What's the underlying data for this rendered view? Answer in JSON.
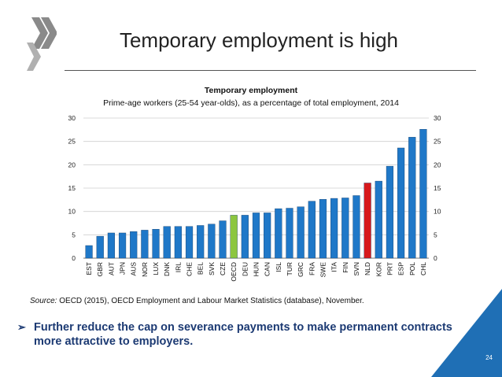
{
  "slide": {
    "title": "Temporary employment is high",
    "page_number": "24"
  },
  "source": {
    "label": "Source:",
    "text": "OECD (2015), OECD Employment and Labour Market Statistics (database), November."
  },
  "bullet": {
    "marker": "➢",
    "text": "Further reduce the cap on severance payments to make permanent contracts more attractive to employers."
  },
  "colors": {
    "bar": "#1f78c8",
    "oecd": "#8cc63f",
    "highlight": "#d7191c",
    "gridline": "#cfcfcf",
    "title_text": "#222222",
    "bullet_text": "#1c3a73",
    "corner": "#1f6fb5",
    "logo": "#8a8a8a"
  },
  "chart_data": {
    "type": "bar",
    "title": "Temporary employment",
    "subtitle": "Prime-age workers (25-54 year-olds), as a percentage of total employment, 2014",
    "xlabel": "",
    "ylabel": "",
    "ylim": [
      0,
      30
    ],
    "yticks": [
      0,
      5,
      10,
      15,
      20,
      25,
      30
    ],
    "grid": true,
    "dual_y_axis": true,
    "categories": [
      "EST",
      "GBR",
      "AUT",
      "JPN",
      "AUS",
      "NOR",
      "LUX",
      "DNK",
      "IRL",
      "CHE",
      "BEL",
      "SVK",
      "CZE",
      "OECD",
      "DEU",
      "HUN",
      "CAN",
      "ISL",
      "TUR",
      "GRC",
      "FRA",
      "SWE",
      "ITA",
      "FIN",
      "SVN",
      "NLD",
      "KOR",
      "PRT",
      "ESP",
      "POL",
      "CHL"
    ],
    "values": [
      2.7,
      4.7,
      5.4,
      5.4,
      5.7,
      6.0,
      6.2,
      6.8,
      6.8,
      6.8,
      7.0,
      7.3,
      8.0,
      9.2,
      9.2,
      9.7,
      9.7,
      10.6,
      10.7,
      11.0,
      12.2,
      12.6,
      12.8,
      12.9,
      13.4,
      16.1,
      16.5,
      19.7,
      23.6,
      25.9,
      27.6
    ],
    "highlights": {
      "OECD": "oecd",
      "NLD": "highlight"
    }
  }
}
